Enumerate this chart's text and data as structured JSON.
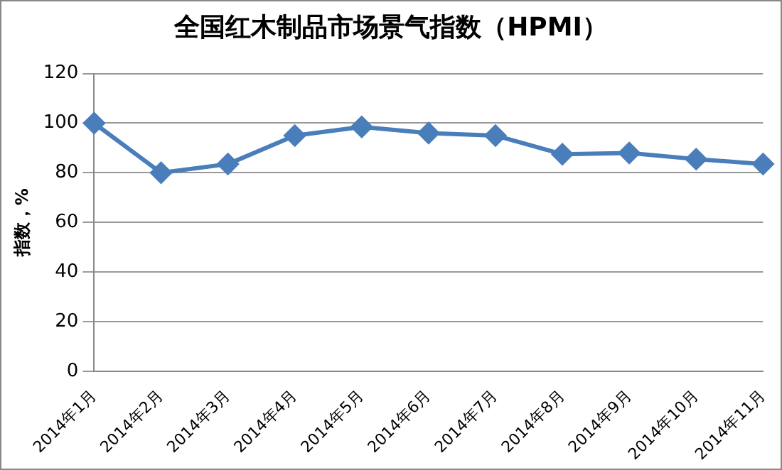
{
  "chart_data": {
    "type": "line",
    "title": "全国红木制品市场景气指数（HPMI）",
    "ylabel": "指数，%",
    "categories": [
      "2014年1月",
      "2014年2月",
      "2014年3月",
      "2014年4月",
      "2014年5月",
      "2014年6月",
      "2014年7月",
      "2014年8月",
      "2014年9月",
      "2014年10月",
      "2014年11月"
    ],
    "series": [
      {
        "color": "#4a7ebb",
        "values": [
          100,
          80,
          83.5,
          95,
          98.5,
          96,
          95,
          87.5,
          88,
          85.5,
          83.5
        ]
      }
    ],
    "ylim": [
      0,
      120
    ],
    "yticks": [
      0,
      20,
      40,
      60,
      80,
      100,
      120
    ],
    "grid": "y",
    "marker": "diamond",
    "legend": false
  }
}
